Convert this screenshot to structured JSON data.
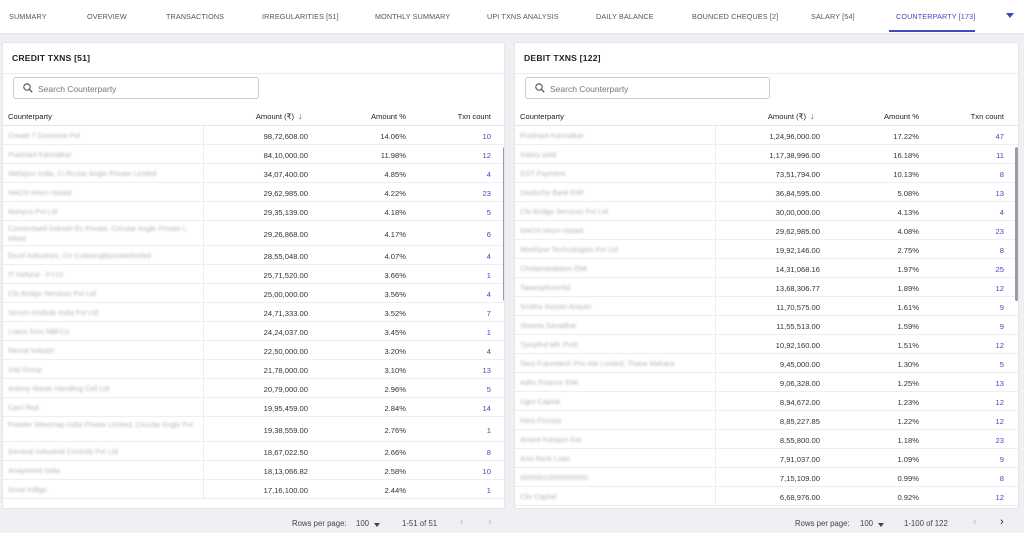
{
  "tabs": [
    {
      "label": "SUMMARY",
      "active": false
    },
    {
      "label": "OVERVIEW",
      "active": false
    },
    {
      "label": "TRANSACTIONS",
      "active": false
    },
    {
      "label": "IRREGULARITIES [51]",
      "active": false
    },
    {
      "label": "MONTHLY SUMMARY",
      "active": false
    },
    {
      "label": "UPI TXNS ANALYSIS",
      "active": false
    },
    {
      "label": "DAILY BALANCE",
      "active": false
    },
    {
      "label": "BOUNCED CHEQUES [2]",
      "active": false
    },
    {
      "label": "SALARY [54]",
      "active": false
    },
    {
      "label": "COUNTERPARTY [173]",
      "active": true
    }
  ],
  "colors": {
    "accent": "#3d4bbf",
    "background": "#eef0f3",
    "panel": "#ffffff"
  },
  "credit": {
    "title": "CREDIT TXNS [51]",
    "search_placeholder": "Search Counterparty",
    "headers": {
      "counterparty": "Counterparty",
      "amount": "Amount (₹)",
      "amount_pct": "Amount %",
      "txn_count": "Txn count"
    },
    "rows": [
      {
        "name": "Create 7 Groomoe Pvt",
        "amount": "98,72,608.00",
        "pct": "14.06%",
        "count": "10"
      },
      {
        "name": "Prashant Karmalkar",
        "amount": "84,10,000.00",
        "pct": "11.98%",
        "count": "12"
      },
      {
        "name": "Welspun India, Ci Rcular Angle Private Limited",
        "amount": "34,07,400.00",
        "pct": "4.85%",
        "count": "4"
      },
      {
        "name": "NACH return repaid",
        "amount": "29,62,985.00",
        "pct": "4.22%",
        "count": "23"
      },
      {
        "name": "Mahyco Pvt Ltd",
        "amount": "29,35,139.00",
        "pct": "4.18%",
        "count": "5"
      },
      {
        "name": "Connectwell Industri Es Private, Circular Angle Private L Mited",
        "amount": "29,26,868.00",
        "pct": "4.17%",
        "count": "6"
      },
      {
        "name": "Excel Industries, Cir Cularangleprivatelimited",
        "amount": "28,55,048.00",
        "pct": "4.07%",
        "count": "4"
      },
      {
        "name": "IT Refund - FY23",
        "amount": "25,71,520.00",
        "pct": "3.66%",
        "count": "1"
      },
      {
        "name": "Cfo Bridge Services Pvt Ltd",
        "amount": "25,00,000.00",
        "pct": "3.56%",
        "count": "4"
      },
      {
        "name": "Serum Institute India Pvt Ltd",
        "amount": "24,71,333.00",
        "pct": "3.52%",
        "count": "7"
      },
      {
        "name": "Loans from NBFCs",
        "amount": "24,24,037.00",
        "pct": "3.45%",
        "count": "1"
      },
      {
        "name": "Nirmal Industri",
        "amount": "22,50,000.00",
        "pct": "3.20%",
        "count": "4"
      },
      {
        "name": "Viaj Group",
        "amount": "21,78,000.00",
        "pct": "3.10%",
        "count": "13"
      },
      {
        "name": "Antony Waste Handling Cell Ltd",
        "amount": "20,79,000.00",
        "pct": "2.96%",
        "count": "5"
      },
      {
        "name": "Carri Red",
        "amount": "19,95,459.00",
        "pct": "2.84%",
        "count": "14"
      },
      {
        "name": "Powder Westmap India Private Limited, Circular Angle Pvt",
        "amount": "19,38,559.00",
        "pct": "2.76%",
        "count": "1"
      },
      {
        "name": "General Industrial Controls Pvt Ltd",
        "amount": "18,67,022.50",
        "pct": "2.66%",
        "count": "8"
      },
      {
        "name": "Anaymond India",
        "amount": "18,13,066.82",
        "pct": "2.58%",
        "count": "10"
      },
      {
        "name": "Grow Indigo",
        "amount": "17,16,100.00",
        "pct": "2.44%",
        "count": "1"
      }
    ],
    "footer": {
      "rows_per_page_label": "Rows per page:",
      "rows_per_page": "100",
      "range": "1-51 of 51"
    }
  },
  "debit": {
    "title": "DEBIT TXNS [122]",
    "search_placeholder": "Search Counterparty",
    "headers": {
      "counterparty": "Counterparty",
      "amount": "Amount (₹)",
      "amount_pct": "Amount %",
      "txn_count": "Txn count"
    },
    "rows": [
      {
        "name": "Prashant Karmalkar",
        "amount": "1,24,96,000.00",
        "pct": "17.22%",
        "count": "47"
      },
      {
        "name": "Salary paid",
        "amount": "1,17,38,996.00",
        "pct": "16.18%",
        "count": "11"
      },
      {
        "name": "GST Payment",
        "amount": "73,51,794.00",
        "pct": "10.13%",
        "count": "8"
      },
      {
        "name": "Deutsche Bank EMI",
        "amount": "36,84,595.00",
        "pct": "5.08%",
        "count": "13"
      },
      {
        "name": "Cfo Bridge Services Pvt Ltd",
        "amount": "30,00,000.00",
        "pct": "4.13%",
        "count": "4"
      },
      {
        "name": "NACH return repaid",
        "amount": "29,62,985.00",
        "pct": "4.08%",
        "count": "23"
      },
      {
        "name": "Worklyse Technologies Pvt Ltd",
        "amount": "19,92,146.00",
        "pct": "2.75%",
        "count": "8"
      },
      {
        "name": "Cholamandalam EMI",
        "amount": "14,31,068.16",
        "pct": "1.97%",
        "count": "25"
      },
      {
        "name": "Tataexpfinserlid",
        "amount": "13,68,306.77",
        "pct": "1.89%",
        "count": "12"
      },
      {
        "name": "Smitha Suryan Arayan",
        "amount": "11,70,575.00",
        "pct": "1.61%",
        "count": "9"
      },
      {
        "name": "Shweta Savadkar",
        "amount": "11,55,513.00",
        "pct": "1.59%",
        "count": "9"
      },
      {
        "name": "Tjaxpfnd Mfc Pvtd",
        "amount": "10,92,160.00",
        "pct": "1.51%",
        "count": "12"
      },
      {
        "name": "Tavo Futuretech Priv Ate Limited, Thane Mahara",
        "amount": "9,45,000.00",
        "pct": "1.30%",
        "count": "5"
      },
      {
        "name": "Aditv Finance EMI",
        "amount": "9,06,328.00",
        "pct": "1.25%",
        "count": "13"
      },
      {
        "name": "Ugro Capital",
        "amount": "8,94,672.00",
        "pct": "1.23%",
        "count": "12"
      },
      {
        "name": "Hero Fincorp",
        "amount": "8,85,227.85",
        "pct": "1.22%",
        "count": "12"
      },
      {
        "name": "Anand Karapur Kar",
        "amount": "8,55,800.00",
        "pct": "1.18%",
        "count": "23"
      },
      {
        "name": "Axis Bank Loan",
        "amount": "7,91,037.00",
        "pct": "1.09%",
        "count": "9"
      },
      {
        "name": "00000010000000000",
        "amount": "7,15,109.00",
        "pct": "0.99%",
        "count": "8"
      },
      {
        "name": "Clix Capital",
        "amount": "6,68,976.00",
        "pct": "0.92%",
        "count": "12"
      }
    ],
    "footer": {
      "rows_per_page_label": "Rows per page:",
      "rows_per_page": "100",
      "range": "1-100 of 122"
    }
  }
}
